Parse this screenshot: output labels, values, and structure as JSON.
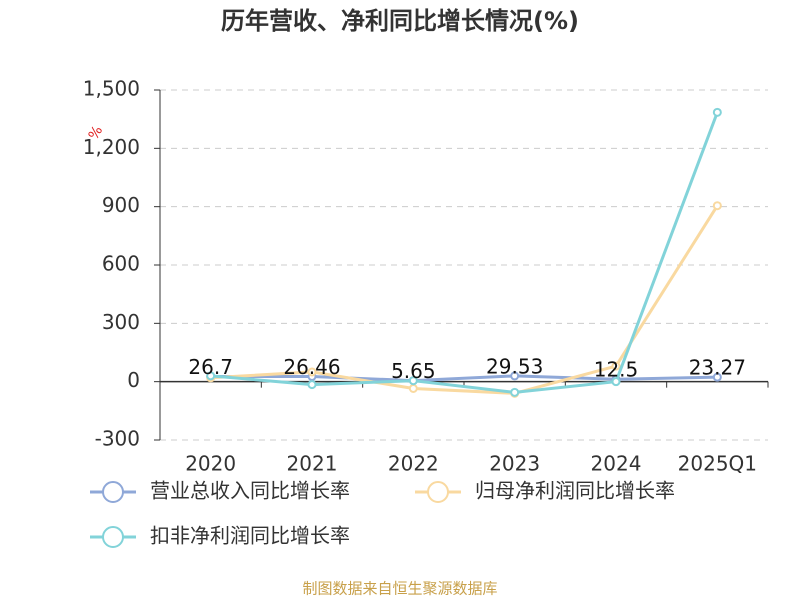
{
  "chart_data": {
    "type": "line",
    "title": "历年营收、净利同比增长情况(%)",
    "y_unit": "%",
    "categories": [
      "2020",
      "2021",
      "2022",
      "2023",
      "2024",
      "2025Q1"
    ],
    "series": [
      {
        "name": "营业总收入同比增长率",
        "color": "#8fa8d8",
        "values": [
          26.7,
          26.46,
          5.65,
          29.53,
          12.5,
          23.27
        ],
        "value_labels": [
          "26.7",
          "26.46",
          "5.65",
          "29.53",
          "12.5",
          "23.27"
        ]
      },
      {
        "name": "归母净利润同比增长率",
        "color": "#f9d9a0",
        "values": [
          20,
          50,
          -35,
          -60,
          80,
          905
        ]
      },
      {
        "name": "扣非净利润同比增长率",
        "color": "#82d3d9",
        "values": [
          30,
          -15,
          5,
          -55,
          0,
          1385
        ]
      }
    ],
    "ylim": [
      -300,
      1500
    ],
    "yticks": [
      -300,
      0,
      300,
      600,
      900,
      {
        "value": 1200,
        "label": "1,200"
      },
      {
        "value": 1500,
        "label": "1,500"
      }
    ],
    "grid": true,
    "source": "制图数据来自恒生聚源数据库"
  }
}
